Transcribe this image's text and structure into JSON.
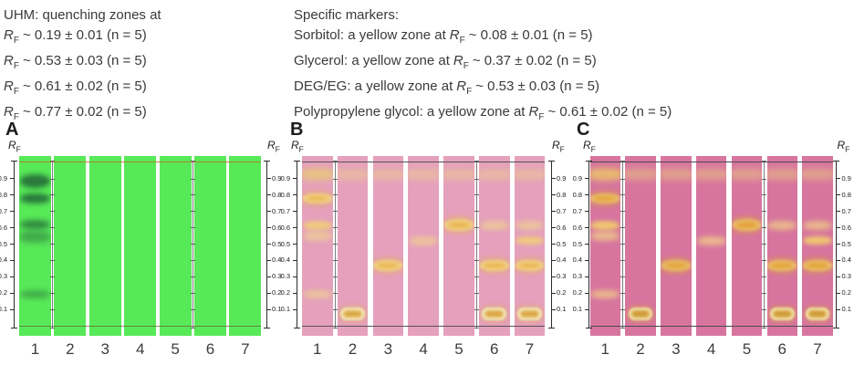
{
  "header": {
    "rf_base": "R",
    "rf_sub": "F",
    "uhm": {
      "title": "UHM: quenching zones at",
      "lines": [
        "~ 0.19 ± 0.01 (n = 5)",
        "~ 0.53 ± 0.03 (n = 5)",
        "~ 0.61 ± 0.02 (n = 5)",
        "~ 0.77 ± 0.02 (n = 5)"
      ]
    },
    "markers": {
      "title": "Specific markers:",
      "lines": [
        {
          "before": "Sorbitol: a yellow zone at",
          "after": "~ 0.08 ± 0.01 (n = 5)"
        },
        {
          "before": "Glycerol: a yellow zone at",
          "after": "~ 0.37 ± 0.02 (n = 5)"
        },
        {
          "before": "DEG/EG: a yellow zone at",
          "after": "~ 0.53 ± 0.03 (n = 5)"
        },
        {
          "before": "Polypropylene glycol: a yellow zone at",
          "after": "~ 0.61 ± 0.02 (n = 5)"
        }
      ]
    }
  },
  "panels": [
    {
      "label": "A",
      "axis_label_base": "R",
      "axis_label_sub": "F",
      "tick_labels": [
        "0.9",
        "0.8",
        "0.7",
        "0.6",
        "0.5",
        "0.4",
        "0.3",
        "0.2",
        "0.1"
      ],
      "lane_numbers": [
        "1",
        "2",
        "3",
        "4",
        "5",
        "6",
        "7"
      ],
      "colors": {
        "plate": "#57e957",
        "front_line": "rgba(185,118,40,0.85)",
        "base_line": "rgba(104,88,58,0.7)",
        "dark_strong": "rgba(30,92,52,0.8)",
        "dark_medium": "rgba(34,98,56,0.68)",
        "dark_soft": "rgba(44,108,62,0.5)",
        "dark_faint": "rgba(40,104,58,0.45)"
      },
      "lanes": [
        {
          "number": "1",
          "bands": [
            {
              "rf": 0.885,
              "style": "dark-strong",
              "h": 15
            },
            {
              "rf": 0.78,
              "style": "dark-strong",
              "h": 11
            },
            {
              "rf": 0.62,
              "style": "dark-medium",
              "h": 10
            },
            {
              "rf": 0.545,
              "style": "dark-soft",
              "h": 13
            },
            {
              "rf": 0.19,
              "style": "dark-faint",
              "h": 9
            }
          ]
        },
        {
          "number": "2",
          "bands": []
        },
        {
          "number": "3",
          "bands": []
        },
        {
          "number": "4",
          "bands": []
        },
        {
          "number": "5",
          "bands": []
        },
        {
          "number": "6",
          "bands": []
        },
        {
          "number": "7",
          "bands": []
        }
      ]
    },
    {
      "label": "B",
      "axis_label_base": "R",
      "axis_label_sub": "F",
      "tick_labels": [
        "0.9",
        "0.8",
        "0.7",
        "0.6",
        "0.5",
        "0.4",
        "0.3",
        "0.2",
        "0.1"
      ],
      "lane_numbers": [
        "1",
        "2",
        "3",
        "4",
        "5",
        "6",
        "7"
      ],
      "colors": {
        "plate": "#e5a0bc",
        "front_line": "#55525c",
        "base_line": "#55525c",
        "stripe": "rgba(236,210,142,0.5)",
        "top_smear": "rgba(232,199,124,0.85)",
        "faint": "rgba(240,214,140,0.65)",
        "light": "rgba(241,208,116,0.85)",
        "strong_outer": "#e9b551",
        "strong_inner": "#f6e2a2",
        "oval_rim": "#dca845",
        "oval_center": "#f7eec6",
        "glow": "rgba(226,176,84,0.5)"
      },
      "lanes": [
        {
          "number": "1",
          "bands": [
            {
              "rf": 0.93,
              "style": "top-smear",
              "h": 14
            },
            {
              "rf": 0.78,
              "style": "strong",
              "h": 11
            },
            {
              "rf": 0.615,
              "style": "light",
              "h": 10
            },
            {
              "rf": 0.55,
              "style": "faint",
              "h": 11
            },
            {
              "rf": 0.19,
              "style": "faint",
              "h": 9
            }
          ]
        },
        {
          "number": "2",
          "bands": [
            {
              "rf": 0.93,
              "style": "stripe",
              "h": 12
            },
            {
              "rf": 0.075,
              "style": "oval",
              "h": 14
            }
          ]
        },
        {
          "number": "3",
          "bands": [
            {
              "rf": 0.93,
              "style": "stripe",
              "h": 12
            },
            {
              "rf": 0.37,
              "style": "strong",
              "h": 12
            }
          ]
        },
        {
          "number": "4",
          "bands": [
            {
              "rf": 0.93,
              "style": "stripe",
              "h": 12
            },
            {
              "rf": 0.52,
              "style": "faint",
              "h": 10
            }
          ]
        },
        {
          "number": "5",
          "bands": [
            {
              "rf": 0.93,
              "style": "stripe",
              "h": 12
            },
            {
              "rf": 0.615,
              "style": "strong",
              "h": 13
            }
          ]
        },
        {
          "number": "6",
          "bands": [
            {
              "rf": 0.93,
              "style": "stripe",
              "h": 12
            },
            {
              "rf": 0.615,
              "style": "faint",
              "h": 10
            },
            {
              "rf": 0.37,
              "style": "strong",
              "h": 12
            },
            {
              "rf": 0.075,
              "style": "oval",
              "h": 14
            }
          ]
        },
        {
          "number": "7",
          "bands": [
            {
              "rf": 0.93,
              "style": "stripe",
              "h": 12
            },
            {
              "rf": 0.615,
              "style": "faint",
              "h": 10
            },
            {
              "rf": 0.52,
              "style": "light",
              "h": 9
            },
            {
              "rf": 0.37,
              "style": "strong",
              "h": 12
            },
            {
              "rf": 0.075,
              "style": "oval",
              "h": 14
            }
          ]
        }
      ]
    },
    {
      "label": "C",
      "axis_label_base": "R",
      "axis_label_sub": "F",
      "tick_labels": [
        "0.9",
        "0.8",
        "0.7",
        "0.6",
        "0.5",
        "0.4",
        "0.3",
        "0.2",
        "0.1"
      ],
      "lane_numbers": [
        "1",
        "2",
        "3",
        "4",
        "5",
        "6",
        "7"
      ],
      "colors": {
        "plate": "#d7759f",
        "front_line": "#4c4a52",
        "base_line": "#4c4a52",
        "stripe": "rgba(235,200,128,0.55)",
        "top_smear": "rgba(233,192,108,0.9)",
        "faint": "rgba(242,211,132,0.7)",
        "light": "rgba(243,206,108,0.9)",
        "strong_outer": "#e2a138",
        "strong_inner": "#f0cf84",
        "oval_rim": "#d09a36",
        "oval_center": "#f6e9b6",
        "glow": "rgba(216,156,60,0.55)"
      },
      "lanes": [
        {
          "number": "1",
          "bands": [
            {
              "rf": 0.93,
              "style": "top-smear",
              "h": 14
            },
            {
              "rf": 0.78,
              "style": "strong",
              "h": 11
            },
            {
              "rf": 0.615,
              "style": "light",
              "h": 10
            },
            {
              "rf": 0.55,
              "style": "faint",
              "h": 11
            },
            {
              "rf": 0.19,
              "style": "faint",
              "h": 9
            }
          ]
        },
        {
          "number": "2",
          "bands": [
            {
              "rf": 0.93,
              "style": "stripe",
              "h": 12
            },
            {
              "rf": 0.075,
              "style": "oval",
              "h": 14
            }
          ]
        },
        {
          "number": "3",
          "bands": [
            {
              "rf": 0.93,
              "style": "stripe",
              "h": 12
            },
            {
              "rf": 0.37,
              "style": "strong",
              "h": 12
            }
          ]
        },
        {
          "number": "4",
          "bands": [
            {
              "rf": 0.93,
              "style": "stripe",
              "h": 12
            },
            {
              "rf": 0.52,
              "style": "faint",
              "h": 10
            }
          ]
        },
        {
          "number": "5",
          "bands": [
            {
              "rf": 0.93,
              "style": "stripe",
              "h": 12
            },
            {
              "rf": 0.615,
              "style": "strong",
              "h": 13
            }
          ]
        },
        {
          "number": "6",
          "bands": [
            {
              "rf": 0.93,
              "style": "stripe",
              "h": 12
            },
            {
              "rf": 0.615,
              "style": "faint",
              "h": 10
            },
            {
              "rf": 0.37,
              "style": "strong",
              "h": 12
            },
            {
              "rf": 0.075,
              "style": "oval",
              "h": 14
            }
          ]
        },
        {
          "number": "7",
          "bands": [
            {
              "rf": 0.93,
              "style": "stripe",
              "h": 12
            },
            {
              "rf": 0.615,
              "style": "faint",
              "h": 10
            },
            {
              "rf": 0.52,
              "style": "light",
              "h": 9
            },
            {
              "rf": 0.37,
              "style": "strong",
              "h": 12
            },
            {
              "rf": 0.075,
              "style": "oval",
              "h": 14
            }
          ]
        }
      ]
    }
  ]
}
